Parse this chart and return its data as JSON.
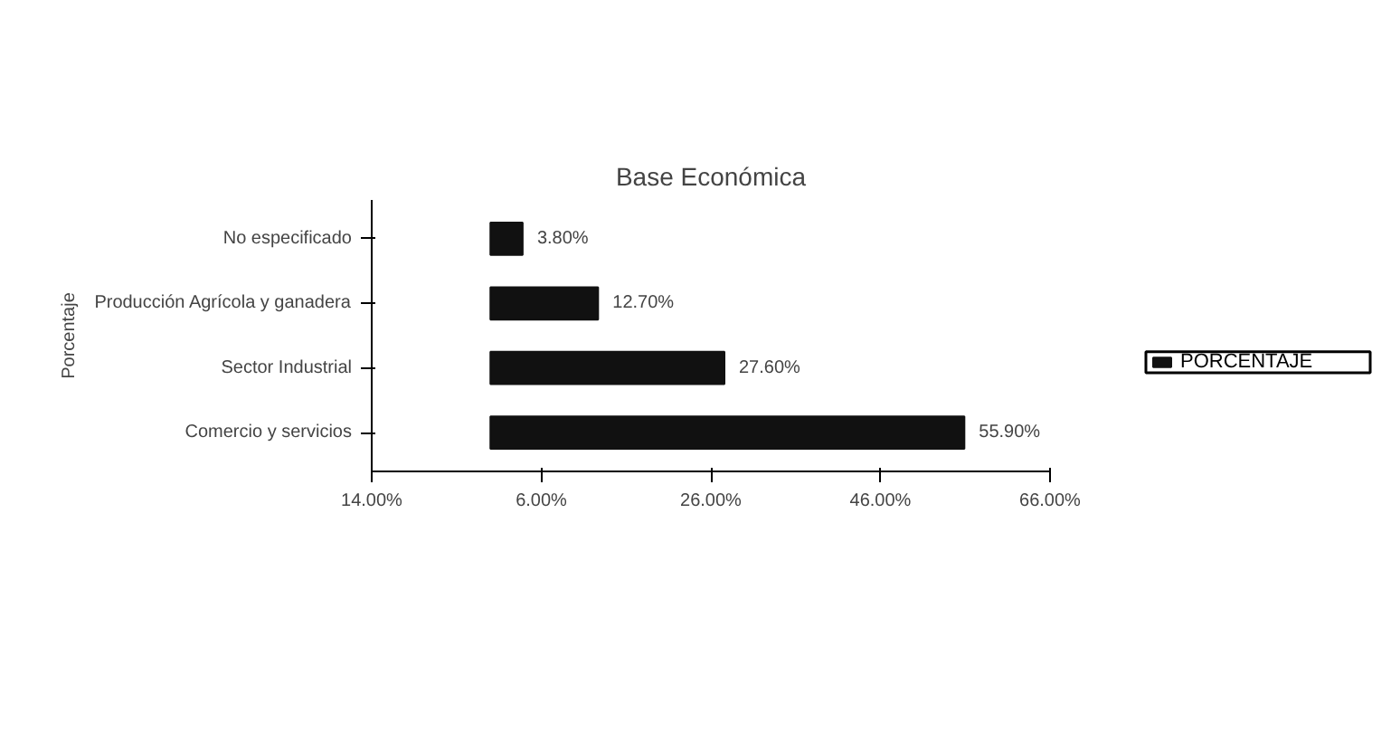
{
  "chart_data": {
    "type": "bar",
    "orientation": "horizontal",
    "title": "Base Económica",
    "ylabel": "Porcentaje",
    "categories": [
      "No especificado",
      "Producción Agrícola y ganadera",
      "Sector Industrial",
      "Comercio y servicios"
    ],
    "series": [
      {
        "name": "PORCENTAJE",
        "color": "#111111",
        "values": [
          3.8,
          12.7,
          27.6,
          55.9
        ],
        "value_labels": [
          "3.80%",
          "12.70%",
          "27.60%",
          "55.90%"
        ]
      }
    ],
    "xlim": [
      -14,
      66
    ],
    "xticks": [
      {
        "value": -14,
        "label": "14.00%"
      },
      {
        "value": 6,
        "label": "6.00%"
      },
      {
        "value": 26,
        "label": "26.00%"
      },
      {
        "value": 46,
        "label": "46.00%"
      },
      {
        "value": 66,
        "label": "66.00%"
      }
    ],
    "grid": false,
    "legend": "right"
  }
}
